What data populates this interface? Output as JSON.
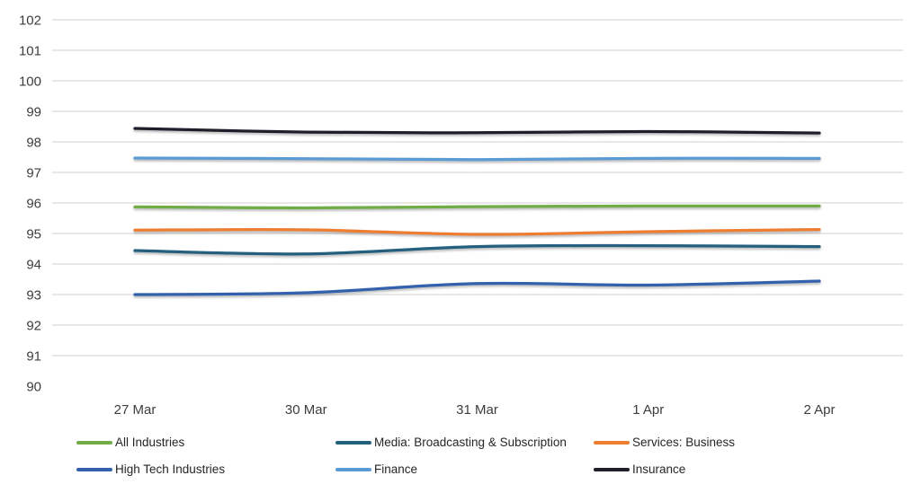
{
  "chart_data": {
    "type": "line",
    "title": "",
    "xlabel": "",
    "ylabel": "",
    "smooth_lines": true,
    "grid": "horizontal",
    "legend_position": "bottom",
    "categories": [
      "27 Mar",
      "30 Mar",
      "31 Mar",
      "1 Apr",
      "2 Apr"
    ],
    "y_axis": {
      "min": 90,
      "max": 102,
      "tick_step": 1,
      "ticks": [
        102,
        101,
        100,
        99,
        98,
        97,
        96,
        95,
        94,
        93,
        92,
        91,
        90
      ]
    },
    "series": [
      {
        "name": "All Industries",
        "color": "#70AD47",
        "values": [
          95.87,
          95.84,
          95.88,
          95.9,
          95.9
        ]
      },
      {
        "name": "Media: Broadcasting & Subscription",
        "color": "#255F7E",
        "values": [
          94.44,
          94.33,
          94.57,
          94.6,
          94.57
        ]
      },
      {
        "name": "Services: Business",
        "color": "#ED7D31",
        "values": [
          95.11,
          95.12,
          94.97,
          95.06,
          95.13
        ]
      },
      {
        "name": "High Tech Industries",
        "color": "#3361AD",
        "values": [
          93.0,
          93.06,
          93.36,
          93.31,
          93.44
        ]
      },
      {
        "name": "Finance",
        "color": "#5B9BD5",
        "values": [
          97.47,
          97.45,
          97.42,
          97.46,
          97.46
        ]
      },
      {
        "name": "Insurance",
        "color": "#1F1F2B",
        "values": [
          98.44,
          98.32,
          98.3,
          98.34,
          98.29
        ]
      }
    ]
  }
}
